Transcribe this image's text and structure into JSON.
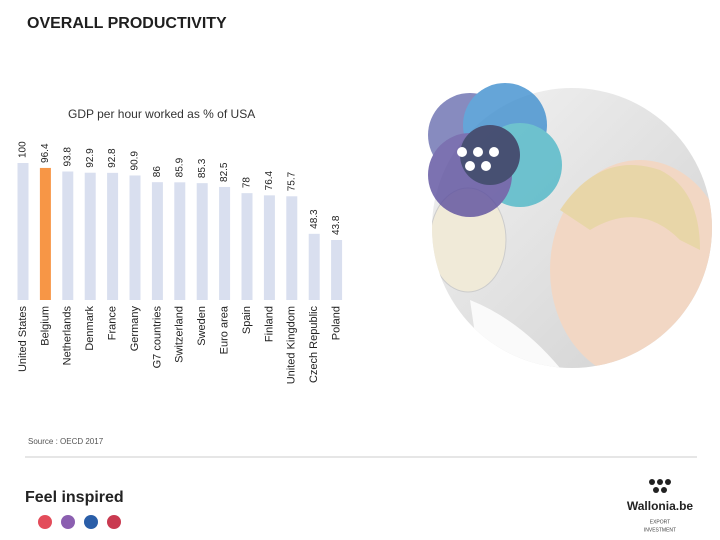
{
  "chart_data": {
    "type": "bar",
    "title": "OVERALL PRODUCTIVITY",
    "subtitle": "GDP per hour worked as % of USA",
    "categories": [
      "United States",
      "Belgium",
      "Netherlands",
      "Denmark",
      "France",
      "Germany",
      "G7 countries",
      "Switzerland",
      "Sweden",
      "Euro area",
      "Spain",
      "Finland",
      "United Kingdom",
      "Czech Republic",
      "Poland"
    ],
    "values": [
      100,
      96.4,
      93.8,
      92.9,
      92.8,
      90.9,
      86,
      85.9,
      85.3,
      82.5,
      78,
      76.4,
      75.7,
      48.3,
      43.8
    ],
    "colors": [
      "#d9dfef",
      "#f79646",
      "#d9dfef",
      "#d9dfef",
      "#d9dfef",
      "#d9dfef",
      "#d9dfef",
      "#d9dfef",
      "#d9dfef",
      "#d9dfef",
      "#d9dfef",
      "#d9dfef",
      "#d9dfef",
      "#d9dfef",
      "#d9dfef"
    ],
    "ylim": [
      0,
      100
    ],
    "source": "Source : OECD 2017"
  },
  "footer": {
    "slogan": "Feel inspired",
    "brand": "Wallonia.be",
    "tagline_1": "EXPORT",
    "tagline_2": "INVESTMENT"
  }
}
